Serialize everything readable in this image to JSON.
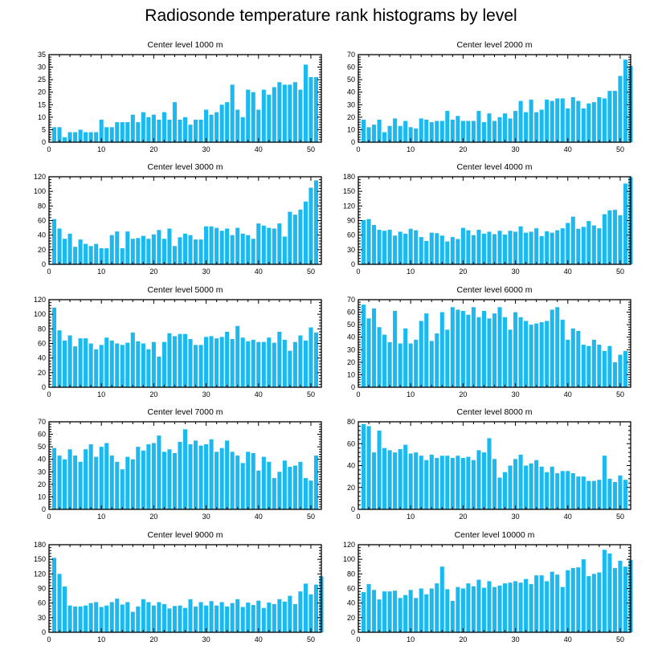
{
  "title": "Radiosonde temperature rank histograms by level",
  "colors": {
    "bar": "#1ab9f0",
    "axis": "#000000",
    "background": "#ffffff"
  },
  "chart_data": [
    {
      "type": "bar",
      "title": "Center level 1000 m",
      "xlim": [
        0,
        52
      ],
      "ylim": [
        0,
        35
      ],
      "xticks": [
        0,
        10,
        20,
        30,
        40,
        50
      ],
      "yticks": [
        0,
        5,
        10,
        15,
        20,
        25,
        30,
        35
      ],
      "values": [
        6,
        6,
        2,
        4,
        4,
        5,
        4,
        4,
        4,
        9,
        6,
        6,
        8,
        8,
        8,
        11,
        8,
        12,
        10,
        11,
        9,
        12,
        9,
        16,
        9,
        10,
        7,
        9,
        9,
        13,
        11,
        12,
        15,
        16,
        23,
        13,
        10,
        21,
        20,
        13,
        21,
        19,
        22,
        24,
        23,
        23,
        24,
        21,
        31,
        26,
        26
      ]
    },
    {
      "type": "bar",
      "title": "Center level 2000 m",
      "xlim": [
        0,
        52
      ],
      "ylim": [
        0,
        70
      ],
      "xticks": [
        0,
        10,
        20,
        30,
        40,
        50
      ],
      "yticks": [
        0,
        10,
        20,
        30,
        40,
        50,
        60,
        70
      ],
      "values": [
        18,
        12,
        14,
        18,
        8,
        13,
        19,
        13,
        17,
        12,
        11,
        19,
        18,
        16,
        17,
        17,
        25,
        18,
        21,
        17,
        17,
        17,
        25,
        16,
        23,
        17,
        20,
        23,
        19,
        25,
        33,
        24,
        34,
        24,
        26,
        34,
        33,
        35,
        35,
        27,
        36,
        33,
        27,
        31,
        32,
        36,
        35,
        41,
        41,
        53,
        66,
        61
      ]
    },
    {
      "type": "bar",
      "title": "Center level 3000 m",
      "xlim": [
        0,
        52
      ],
      "ylim": [
        0,
        120
      ],
      "xticks": [
        0,
        10,
        20,
        30,
        40,
        50
      ],
      "yticks": [
        0,
        20,
        40,
        60,
        80,
        100,
        120
      ],
      "values": [
        62,
        49,
        35,
        42,
        24,
        34,
        28,
        25,
        28,
        22,
        22,
        40,
        45,
        22,
        45,
        35,
        36,
        39,
        35,
        41,
        47,
        35,
        49,
        25,
        37,
        42,
        40,
        34,
        34,
        52,
        52,
        50,
        46,
        49,
        40,
        50,
        42,
        40,
        35,
        56,
        53,
        50,
        49,
        56,
        38,
        72,
        68,
        75,
        86,
        105,
        115
      ]
    },
    {
      "type": "bar",
      "title": "Center level 4000 m",
      "xlim": [
        0,
        52
      ],
      "ylim": [
        0,
        180
      ],
      "xticks": [
        0,
        10,
        20,
        30,
        40,
        50
      ],
      "yticks": [
        0,
        30,
        60,
        90,
        120,
        150,
        180
      ],
      "values": [
        91,
        93,
        81,
        71,
        69,
        71,
        59,
        67,
        63,
        73,
        70,
        56,
        48,
        65,
        64,
        59,
        47,
        56,
        52,
        75,
        70,
        60,
        71,
        63,
        67,
        62,
        69,
        61,
        69,
        67,
        78,
        65,
        67,
        74,
        58,
        68,
        65,
        70,
        74,
        85,
        98,
        73,
        77,
        89,
        80,
        74,
        103,
        111,
        112,
        101,
        166,
        179
      ]
    },
    {
      "type": "bar",
      "title": "Center level 5000 m",
      "xlim": [
        0,
        52
      ],
      "ylim": [
        0,
        120
      ],
      "xticks": [
        0,
        10,
        20,
        30,
        40,
        50
      ],
      "yticks": [
        0,
        20,
        40,
        60,
        80,
        100,
        120
      ],
      "values": [
        109,
        78,
        64,
        71,
        56,
        67,
        67,
        60,
        52,
        58,
        68,
        64,
        60,
        58,
        61,
        75,
        63,
        60,
        52,
        62,
        42,
        62,
        74,
        70,
        73,
        73,
        66,
        58,
        58,
        69,
        70,
        67,
        69,
        76,
        66,
        84,
        68,
        63,
        65,
        62,
        62,
        68,
        61,
        76,
        65,
        50,
        62,
        71,
        64,
        82,
        75
      ]
    },
    {
      "type": "bar",
      "title": "Center level 6000 m",
      "xlim": [
        0,
        52
      ],
      "ylim": [
        0,
        70
      ],
      "xticks": [
        0,
        10,
        20,
        30,
        40,
        50
      ],
      "yticks": [
        0,
        10,
        20,
        30,
        40,
        50,
        60,
        70
      ],
      "values": [
        66,
        55,
        63,
        48,
        42,
        36,
        61,
        35,
        47,
        35,
        38,
        53,
        59,
        37,
        43,
        60,
        46,
        64,
        62,
        61,
        58,
        64,
        56,
        61,
        55,
        59,
        64,
        56,
        46,
        60,
        56,
        53,
        50,
        51,
        52,
        53,
        62,
        64,
        54,
        38,
        47,
        45,
        34,
        33,
        38,
        34,
        29,
        33,
        20,
        26,
        29
      ]
    },
    {
      "type": "bar",
      "title": "Center level 7000 m",
      "xlim": [
        0,
        52
      ],
      "ylim": [
        0,
        70
      ],
      "xticks": [
        0,
        10,
        20,
        30,
        40,
        50
      ],
      "yticks": [
        0,
        10,
        20,
        30,
        40,
        50,
        60,
        70
      ],
      "values": [
        49,
        43,
        40,
        48,
        43,
        38,
        48,
        52,
        42,
        50,
        53,
        43,
        38,
        32,
        42,
        40,
        50,
        47,
        52,
        53,
        59,
        46,
        48,
        45,
        54,
        64,
        52,
        55,
        51,
        52,
        56,
        46,
        49,
        55,
        46,
        43,
        37,
        46,
        45,
        31,
        42,
        38,
        25,
        30,
        39,
        34,
        35,
        38,
        25,
        23,
        43
      ]
    },
    {
      "type": "bar",
      "title": "Center level 8000 m",
      "xlim": [
        0,
        52
      ],
      "ylim": [
        0,
        80
      ],
      "xticks": [
        0,
        10,
        20,
        30,
        40,
        50
      ],
      "yticks": [
        0,
        20,
        40,
        60,
        80
      ],
      "values": [
        78,
        76,
        52,
        72,
        56,
        54,
        52,
        55,
        59,
        51,
        52,
        49,
        45,
        50,
        47,
        49,
        49,
        47,
        49,
        47,
        48,
        45,
        54,
        52,
        65,
        46,
        29,
        34,
        40,
        46,
        50,
        40,
        42,
        45,
        39,
        34,
        39,
        33,
        35,
        35,
        33,
        30,
        30,
        26,
        26,
        27,
        49,
        28,
        25,
        31,
        27
      ]
    },
    {
      "type": "bar",
      "title": "Center level 9000 m",
      "xlim": [
        0,
        52
      ],
      "ylim": [
        0,
        180
      ],
      "xticks": [
        0,
        10,
        20,
        30,
        40,
        50
      ],
      "yticks": [
        0,
        30,
        60,
        90,
        120,
        150,
        180
      ],
      "values": [
        153,
        120,
        94,
        55,
        53,
        53,
        55,
        60,
        62,
        52,
        55,
        62,
        69,
        57,
        62,
        42,
        53,
        68,
        62,
        55,
        62,
        58,
        49,
        54,
        55,
        50,
        68,
        53,
        62,
        55,
        64,
        55,
        62,
        53,
        60,
        68,
        52,
        61,
        56,
        65,
        50,
        61,
        58,
        68,
        63,
        75,
        58,
        84,
        100,
        78,
        98,
        115
      ]
    },
    {
      "type": "bar",
      "title": "Center level 10000 m",
      "xlim": [
        0,
        52
      ],
      "ylim": [
        0,
        120
      ],
      "xticks": [
        0,
        10,
        20,
        30,
        40,
        50
      ],
      "yticks": [
        0,
        20,
        40,
        60,
        80,
        100,
        120
      ],
      "values": [
        55,
        66,
        58,
        45,
        56,
        56,
        57,
        47,
        51,
        58,
        47,
        60,
        52,
        60,
        67,
        90,
        59,
        43,
        62,
        60,
        67,
        63,
        72,
        61,
        70,
        62,
        64,
        67,
        68,
        70,
        68,
        73,
        66,
        78,
        78,
        70,
        83,
        79,
        62,
        85,
        88,
        89,
        100,
        77,
        80,
        82,
        113,
        108,
        88,
        98,
        90,
        99
      ]
    }
  ]
}
